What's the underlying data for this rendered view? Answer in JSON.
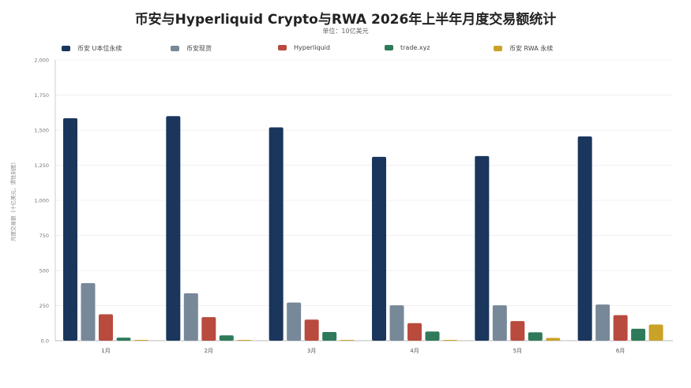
{
  "chart_data": {
    "type": "bar",
    "title": "币安与Hyperliquid Crypto与RWA 2026年上半年月度交易额统计",
    "subtitle": "单位：10亿美元",
    "ylabel": "月度交易额（十亿美元，谓性刻度）",
    "xlabel": "",
    "categories": [
      "1月",
      "2月",
      "3月",
      "4月",
      "5月",
      "6月"
    ],
    "ylim": [
      0,
      2000
    ],
    "yticks": [
      "0.0",
      "250",
      "500",
      "750",
      "1,000",
      "1,250",
      "1,500",
      "1,750",
      "2,000"
    ],
    "ytick_values": [
      0,
      250,
      500,
      750,
      1000,
      1250,
      1500,
      1750,
      2000
    ],
    "grid": true,
    "legend_position": "top",
    "series": [
      {
        "name": "币安 U本位永续",
        "color": "#1b365d",
        "values": [
          1585,
          1600,
          1520,
          1310,
          1315,
          1455
        ]
      },
      {
        "name": "币安现货",
        "color": "#778899",
        "values": [
          410,
          338,
          272,
          252,
          252,
          258
        ]
      },
      {
        "name": "Hyperliquid",
        "color": "#b94a3e",
        "values": [
          188,
          168,
          150,
          125,
          140,
          182
        ]
      },
      {
        "name": "trade.xyz",
        "color": "#2e7a5a",
        "values": [
          22,
          38,
          62,
          65,
          60,
          85
        ]
      },
      {
        "name": "币安 RWA 永续",
        "color": "#c9a227",
        "values": [
          5,
          5,
          5,
          5,
          20,
          115
        ]
      }
    ]
  }
}
